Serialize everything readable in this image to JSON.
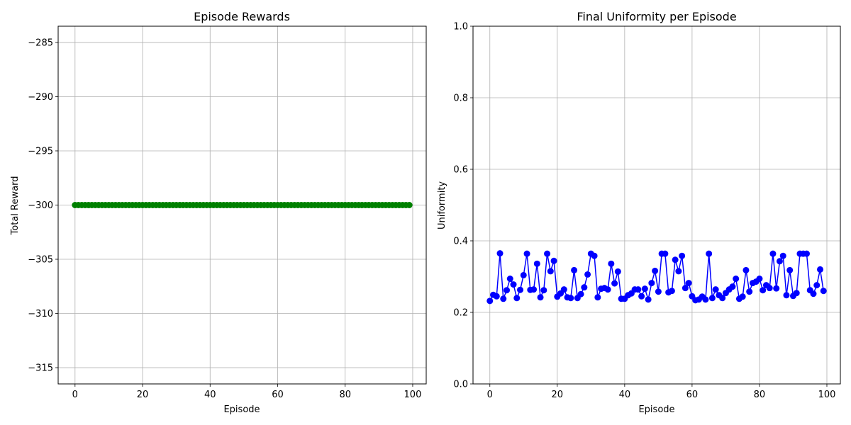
{
  "colors": {
    "rewards_series": "#008000",
    "uniformity_series": "#0000ff",
    "grid": "#b0b0b0",
    "axes": "#000000"
  },
  "chart_data": [
    {
      "type": "line",
      "title": "Episode Rewards",
      "xlabel": "Episode",
      "ylabel": "Total Reward",
      "xlim": [
        -5,
        104
      ],
      "ylim": [
        -316.5,
        -283.5
      ],
      "xticks": [
        0,
        20,
        40,
        60,
        80,
        100
      ],
      "xtick_labels": [
        "0",
        "20",
        "40",
        "60",
        "80",
        "100"
      ],
      "yticks": [
        -285,
        -290,
        -295,
        -300,
        -305,
        -310,
        -315
      ],
      "ytick_labels": [
        "−285",
        "−290",
        "−295",
        "−300",
        "−305",
        "−310",
        "−315"
      ],
      "grid": true,
      "marker": "circle",
      "x_start": 0,
      "x_step": 1,
      "series": [
        {
          "color": "#008000",
          "values": [
            -300,
            -300,
            -300,
            -300,
            -300,
            -300,
            -300,
            -300,
            -300,
            -300,
            -300,
            -300,
            -300,
            -300,
            -300,
            -300,
            -300,
            -300,
            -300,
            -300,
            -300,
            -300,
            -300,
            -300,
            -300,
            -300,
            -300,
            -300,
            -300,
            -300,
            -300,
            -300,
            -300,
            -300,
            -300,
            -300,
            -300,
            -300,
            -300,
            -300,
            -300,
            -300,
            -300,
            -300,
            -300,
            -300,
            -300,
            -300,
            -300,
            -300,
            -300,
            -300,
            -300,
            -300,
            -300,
            -300,
            -300,
            -300,
            -300,
            -300,
            -300,
            -300,
            -300,
            -300,
            -300,
            -300,
            -300,
            -300,
            -300,
            -300,
            -300,
            -300,
            -300,
            -300,
            -300,
            -300,
            -300,
            -300,
            -300,
            -300,
            -300,
            -300,
            -300,
            -300,
            -300,
            -300,
            -300,
            -300,
            -300,
            -300,
            -300,
            -300,
            -300,
            -300,
            -300,
            -300,
            -300,
            -300,
            -300,
            -300
          ]
        }
      ]
    },
    {
      "type": "line",
      "title": "Final Uniformity per Episode",
      "xlabel": "Episode",
      "ylabel": "Uniformity",
      "xlim": [
        -5,
        104
      ],
      "ylim": [
        0,
        1
      ],
      "xticks": [
        0,
        20,
        40,
        60,
        80,
        100
      ],
      "xtick_labels": [
        "0",
        "20",
        "40",
        "60",
        "80",
        "100"
      ],
      "yticks": [
        0,
        0.2,
        0.4,
        0.6,
        0.8,
        1.0
      ],
      "ytick_labels": [
        "0.0",
        "0.2",
        "0.4",
        "0.6",
        "0.8",
        "1.0"
      ],
      "grid": true,
      "marker": "circle",
      "x_start": 0,
      "x_step": 1,
      "series": [
        {
          "color": "#0000ff",
          "values": [
            0.232,
            0.249,
            0.245,
            0.365,
            0.238,
            0.262,
            0.294,
            0.278,
            0.24,
            0.263,
            0.304,
            0.364,
            0.263,
            0.264,
            0.336,
            0.242,
            0.262,
            0.364,
            0.315,
            0.344,
            0.244,
            0.253,
            0.264,
            0.242,
            0.24,
            0.318,
            0.24,
            0.251,
            0.27,
            0.306,
            0.364,
            0.358,
            0.242,
            0.266,
            0.268,
            0.264,
            0.336,
            0.281,
            0.314,
            0.238,
            0.238,
            0.248,
            0.253,
            0.264,
            0.264,
            0.245,
            0.266,
            0.236,
            0.282,
            0.316,
            0.258,
            0.364,
            0.364,
            0.256,
            0.26,
            0.347,
            0.315,
            0.358,
            0.268,
            0.282,
            0.245,
            0.234,
            0.236,
            0.244,
            0.236,
            0.364,
            0.24,
            0.264,
            0.248,
            0.24,
            0.254,
            0.264,
            0.272,
            0.294,
            0.238,
            0.244,
            0.318,
            0.258,
            0.282,
            0.286,
            0.294,
            0.262,
            0.276,
            0.268,
            0.364,
            0.267,
            0.343,
            0.358,
            0.248,
            0.318,
            0.246,
            0.254,
            0.364,
            0.364,
            0.364,
            0.262,
            0.252,
            0.276,
            0.32,
            0.26
          ]
        }
      ]
    }
  ]
}
